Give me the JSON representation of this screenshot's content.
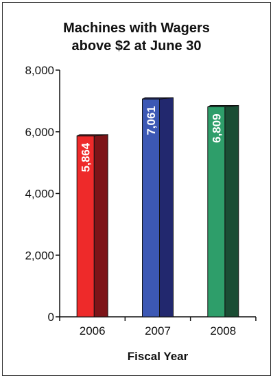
{
  "chart_data": {
    "type": "bar",
    "title_lines": [
      "Machines with Wagers",
      "above $2 at June 30"
    ],
    "xlabel": "Fiscal Year",
    "ylabel": "",
    "categories": [
      "2006",
      "2007",
      "2008"
    ],
    "values": [
      5864,
      7061,
      6809
    ],
    "data_labels": [
      "5,864",
      "7,061",
      "6,809"
    ],
    "ylim": [
      0,
      8000
    ],
    "yticks": [
      0,
      2000,
      4000,
      6000,
      8000
    ],
    "ytick_labels": [
      "0",
      "2,000",
      "4,000",
      "6,000",
      "8,000"
    ],
    "bar_colors": [
      {
        "front": "#ee2a2a",
        "side": "#7d1418"
      },
      {
        "front": "#3c58b4",
        "side": "#22286e"
      },
      {
        "front": "#2e9e6a",
        "side": "#1a4d34"
      }
    ],
    "grid": false,
    "legend": "none"
  }
}
